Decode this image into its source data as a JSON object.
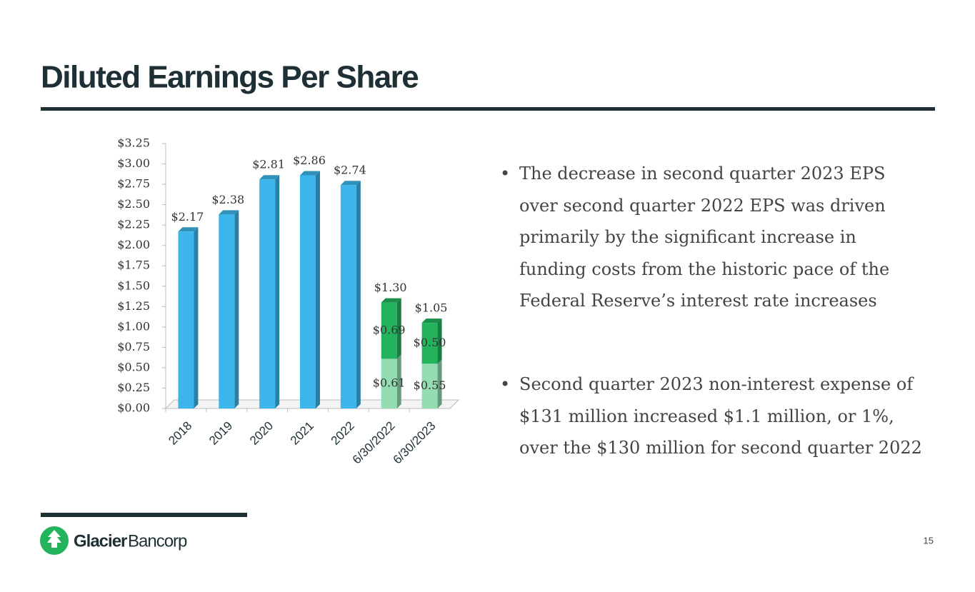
{
  "header": {
    "title": "Diluted Earnings Per Share"
  },
  "chart_data": {
    "type": "stacked_bar",
    "categories": [
      "2018",
      "2019",
      "2020",
      "2021",
      "2022",
      "6/30/2022",
      "6/30/2023"
    ],
    "series": [
      {
        "color": "#3cb6ea",
        "values": [
          2.17,
          2.38,
          2.81,
          2.86,
          2.74,
          null,
          null
        ],
        "value_labels": [
          "$2.17",
          "$2.38",
          "$2.81",
          "$2.86",
          "$2.74",
          null,
          null
        ]
      },
      {
        "color": "#93dbb0",
        "values": [
          null,
          null,
          null,
          null,
          null,
          0.61,
          0.55
        ],
        "value_labels": [
          null,
          null,
          null,
          null,
          null,
          "$0.61",
          "$0.55"
        ]
      },
      {
        "color": "#22b35c",
        "values": [
          null,
          null,
          null,
          null,
          null,
          0.69,
          0.5
        ],
        "value_labels": [
          null,
          null,
          null,
          null,
          null,
          "$0.69",
          "$0.50"
        ]
      }
    ],
    "totals": {
      "values": [
        null,
        null,
        null,
        null,
        null,
        1.3,
        1.05
      ],
      "value_labels": [
        null,
        null,
        null,
        null,
        null,
        "$1.30",
        "$1.05"
      ]
    },
    "ylim": [
      0,
      3.25
    ],
    "yticks": [
      {
        "value": 0,
        "label": "$0.00"
      },
      {
        "value": 0.25,
        "label": "$0.25"
      },
      {
        "value": 0.5,
        "label": "$0.50"
      },
      {
        "value": 0.75,
        "label": "$0.75"
      },
      {
        "value": 1,
        "label": "$1.00"
      },
      {
        "value": 1.25,
        "label": "$1.25"
      },
      {
        "value": 1.5,
        "label": "$1.50"
      },
      {
        "value": 1.75,
        "label": "$1.75"
      },
      {
        "value": 2,
        "label": "$2.00"
      },
      {
        "value": 2.25,
        "label": "$2.25"
      },
      {
        "value": 2.5,
        "label": "$2.50"
      },
      {
        "value": 2.75,
        "label": "$2.75"
      },
      {
        "value": 3,
        "label": "$3.00"
      },
      {
        "value": 3.25,
        "label": "$3.25"
      }
    ],
    "grid": false
  },
  "bullets": [
    "The decrease in second quarter 2023 EPS over second quarter 2022 EPS was driven primarily by the significant increase in funding costs from the historic pace of the Federal Reserve’s interest rate increases",
    "Second quarter 2023 non-interest expense of $131 million increased $1.1 million, or 1%, over the $130 million for second quarter 2022"
  ],
  "footer": {
    "logo_bold": "Glacier",
    "logo_light": "Bancorp",
    "page_number": "15"
  }
}
